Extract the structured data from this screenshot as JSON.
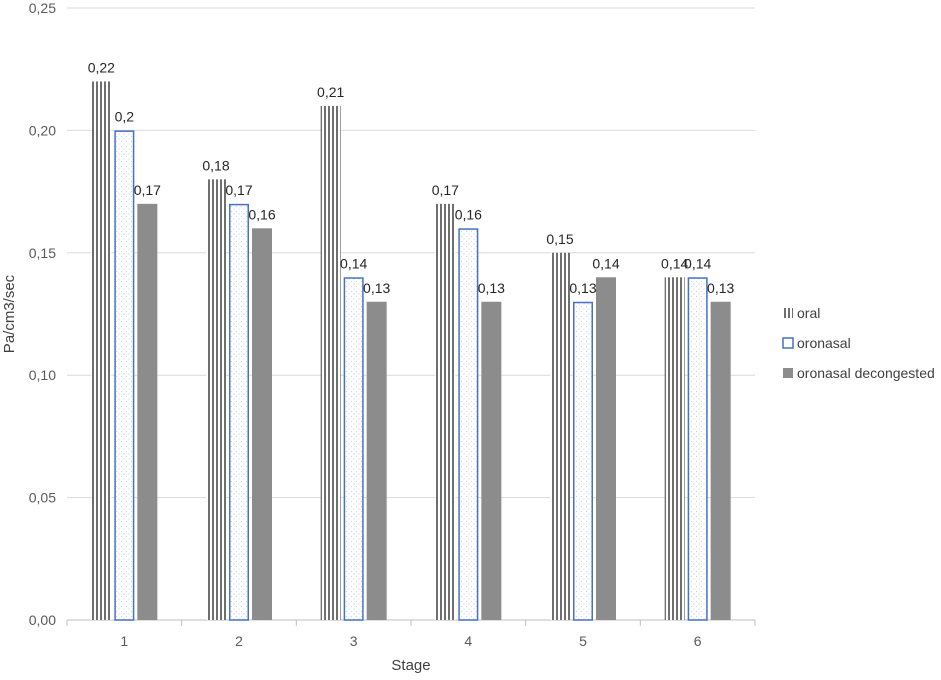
{
  "chart_data": {
    "type": "bar",
    "xlabel": "Stage",
    "ylabel": "Pa/cm3/sec",
    "ylim": [
      0,
      0.25
    ],
    "yticks": [
      "0,00",
      "0,05",
      "0,10",
      "0,15",
      "0,20",
      "0,25"
    ],
    "ytick_values": [
      0,
      0.05,
      0.1,
      0.15,
      0.2,
      0.25
    ],
    "categories": [
      "1",
      "2",
      "3",
      "4",
      "5",
      "6"
    ],
    "grid": true,
    "legend_position": "right",
    "series": [
      {
        "name": "oral",
        "values": [
          0.22,
          0.18,
          0.21,
          0.17,
          0.15,
          0.14
        ],
        "labels": [
          "0,22",
          "0,18",
          "0,21",
          "0,17",
          "0,15",
          "0,14"
        ],
        "style": "vertical-stripes",
        "color": "#7f7f7f"
      },
      {
        "name": "oronasal",
        "values": [
          0.2,
          0.17,
          0.14,
          0.16,
          0.13,
          0.14
        ],
        "labels": [
          "0,2",
          "0,17",
          "0,14",
          "0,16",
          "0,13",
          "0,14"
        ],
        "style": "dotted-outline",
        "color": "#4472c4"
      },
      {
        "name": "oronasal decongested",
        "values": [
          0.17,
          0.16,
          0.13,
          0.13,
          0.14,
          0.13
        ],
        "labels": [
          "0,17",
          "0,16",
          "0,13",
          "0,13",
          "0,14",
          "0,13"
        ],
        "style": "solid",
        "color": "#8c8c8c"
      }
    ]
  }
}
